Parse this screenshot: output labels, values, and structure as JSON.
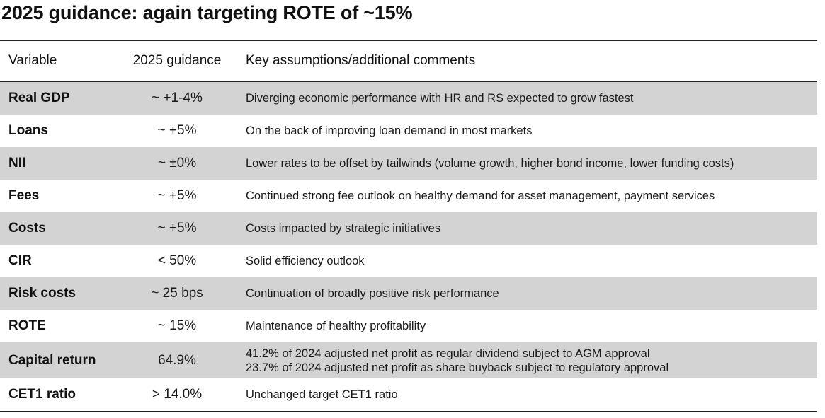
{
  "title": "2025 guidance: again targeting ROTE of ~15%",
  "table": {
    "headers": {
      "variable": "Variable",
      "guidance": "2025 guidance",
      "comments": "Key assumptions/additional comments"
    },
    "rows": [
      {
        "variable": "Real GDP",
        "guidance": "~ +1-4%",
        "comments": [
          "Diverging economic performance with HR and RS expected to grow fastest"
        ]
      },
      {
        "variable": "Loans",
        "guidance": "~ +5%",
        "comments": [
          "On the back of improving loan demand in most markets"
        ]
      },
      {
        "variable": "NII",
        "guidance": "~ ±0%",
        "comments": [
          "Lower rates to be offset by tailwinds (volume growth, higher bond income, lower funding costs)"
        ]
      },
      {
        "variable": "Fees",
        "guidance": "~ +5%",
        "comments": [
          "Continued strong fee outlook on healthy demand for asset management, payment services"
        ]
      },
      {
        "variable": "Costs",
        "guidance": "~ +5%",
        "comments": [
          "Costs impacted by strategic initiatives"
        ]
      },
      {
        "variable": "CIR",
        "guidance": "< 50%",
        "comments": [
          "Solid efficiency outlook"
        ]
      },
      {
        "variable": "Risk costs",
        "guidance": "~ 25 bps",
        "comments": [
          "Continuation of broadly positive risk performance"
        ]
      },
      {
        "variable": "ROTE",
        "guidance": "~ 15%",
        "comments": [
          "Maintenance of healthy profitability"
        ]
      },
      {
        "variable": "Capital return",
        "guidance": "64.9%",
        "comments": [
          "41.2% of 2024 adjusted net profit as regular dividend subject to AGM approval",
          "23.7% of 2024 adjusted net profit as share buyback subject to regulatory approval"
        ]
      },
      {
        "variable": "CET1 ratio",
        "guidance": "> 14.0%",
        "comments": [
          "Unchanged target CET1 ratio"
        ]
      }
    ]
  },
  "colors": {
    "shaded_row": "#d3d3d3",
    "rule": "#222222"
  }
}
